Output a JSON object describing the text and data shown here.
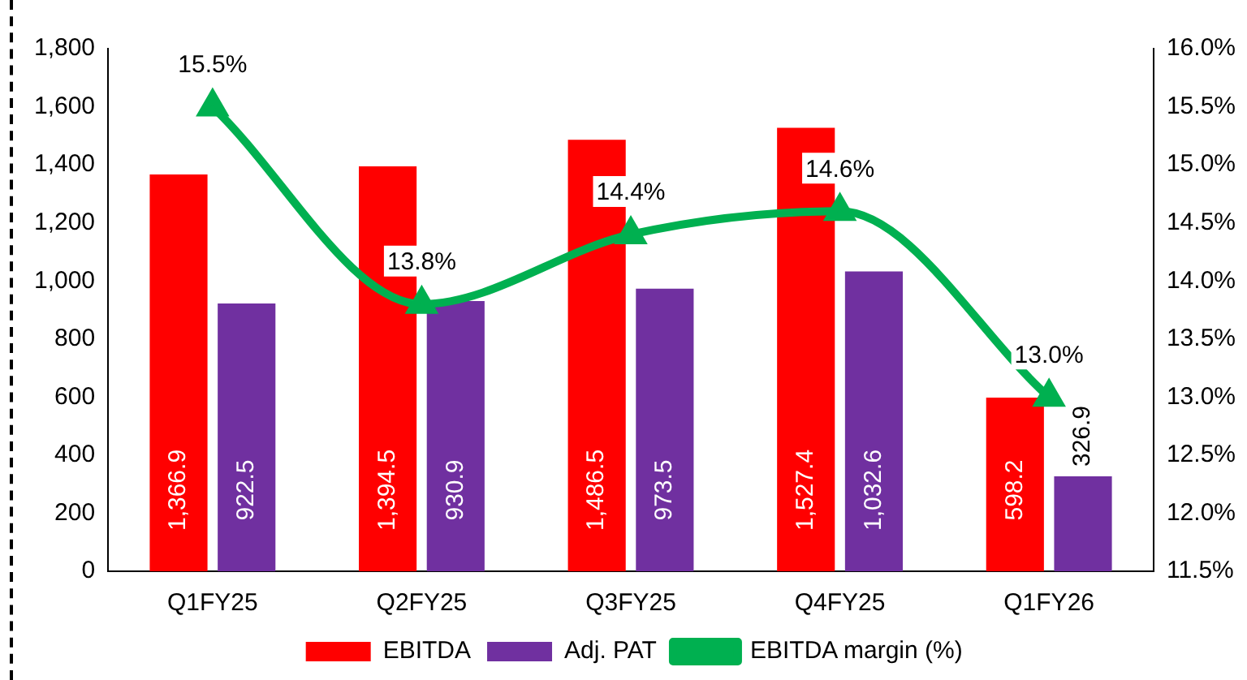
{
  "chart_data": {
    "type": "bar",
    "categories": [
      "Q1FY25",
      "Q2FY25",
      "Q3FY25",
      "Q4FY25",
      "Q1FY26"
    ],
    "series": [
      {
        "name": "EBITDA",
        "color": "#ff0000",
        "values": [
          1366.9,
          1394.5,
          1486.5,
          1527.4,
          598.2
        ],
        "value_labels": [
          "1,366.9",
          "1,394.5",
          "1,486.5",
          "1,527.4",
          "598.2"
        ]
      },
      {
        "name": "Adj. PAT",
        "color": "#7030a0",
        "values": [
          922.5,
          930.9,
          973.5,
          1032.6,
          326.9
        ],
        "value_labels": [
          "922.5",
          "930.9",
          "973.5",
          "1,032.6",
          "326.9"
        ]
      },
      {
        "name": "EBITDA margin (%)",
        "type": "line",
        "axis": "y2",
        "color": "#00b050",
        "marker": "triangle",
        "values": [
          15.5,
          13.8,
          14.4,
          14.6,
          13.0
        ],
        "value_labels": [
          "15.5%",
          "13.8%",
          "14.4%",
          "14.6%",
          "13.0%"
        ]
      }
    ],
    "ylim": [
      0,
      1800
    ],
    "yticks": [
      0,
      200,
      400,
      600,
      800,
      {
        "value": 1000,
        "label": "1,000"
      },
      {
        "value": 1200,
        "label": "1,200"
      },
      {
        "value": 1400,
        "label": "1,400"
      },
      {
        "value": 1600,
        "label": "1,600"
      },
      {
        "value": 1800,
        "label": "1,800"
      }
    ],
    "y2lim": [
      11.5,
      16.0
    ],
    "y2ticks": [
      {
        "value": 11.5,
        "label": "11.5%"
      },
      {
        "value": 12,
        "label": "12.0%"
      },
      {
        "value": 12.5,
        "label": "12.5%"
      },
      {
        "value": 13,
        "label": "13.0%"
      },
      {
        "value": 13.5,
        "label": "13.5%"
      },
      {
        "value": 14,
        "label": "14.0%"
      },
      {
        "value": 14.5,
        "label": "14.5%"
      },
      {
        "value": 15,
        "label": "15.0%"
      },
      {
        "value": 15.5,
        "label": "15.5%"
      },
      {
        "value": 16,
        "label": "16.0%"
      }
    ],
    "grid": false,
    "legend": "bottom"
  }
}
